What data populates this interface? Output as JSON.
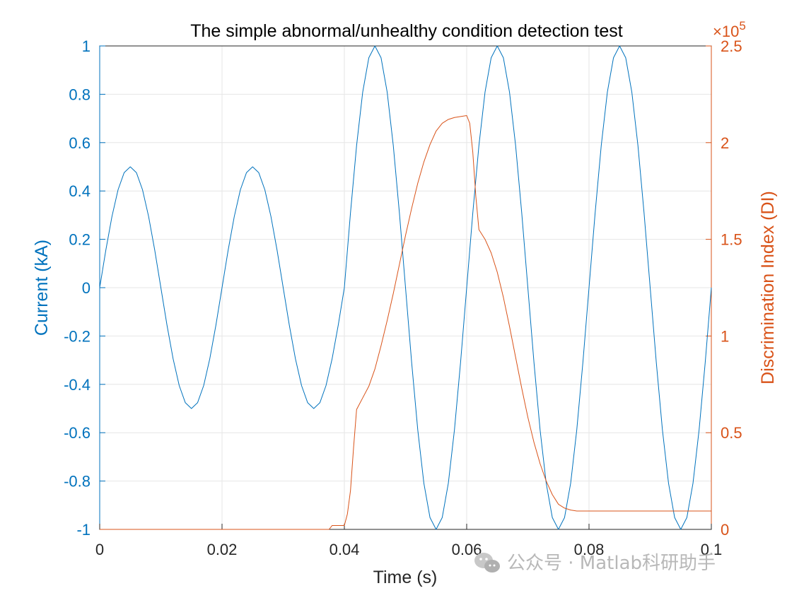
{
  "chart_data": {
    "type": "line",
    "title": "The simple abnormal/unhealthy condition detection test",
    "xlabel": "Time (s)",
    "ylabel_left": "Current (kA)",
    "ylabel_right": "Discrimination Index (DI)",
    "right_exponent_base": "×10",
    "right_exponent_power": "5",
    "xlim": [
      0,
      0.1
    ],
    "ylim_left": [
      -1,
      1
    ],
    "ylim_right": [
      0,
      2.5
    ],
    "x_ticks": [
      0,
      0.02,
      0.04,
      0.06,
      0.08,
      0.1
    ],
    "x_tick_labels": [
      "0",
      "0.02",
      "0.04",
      "0.06",
      "0.08",
      "0.1"
    ],
    "y_left_ticks": [
      -1,
      -0.8,
      -0.6,
      -0.4,
      -0.2,
      0,
      0.2,
      0.4,
      0.6,
      0.8,
      1
    ],
    "y_left_tick_labels": [
      "-1",
      "-0.8",
      "-0.6",
      "-0.4",
      "-0.2",
      "0",
      "0.2",
      "0.4",
      "0.6",
      "0.8",
      "1"
    ],
    "y_right_ticks": [
      0,
      0.5,
      1,
      1.5,
      2,
      2.5
    ],
    "y_right_tick_labels": [
      "0",
      "0.5",
      "1",
      "1.5",
      "2",
      "2.5"
    ],
    "grid": true,
    "colors": {
      "left": "#0072bd",
      "right": "#d95319",
      "grid": "#e6e6e6",
      "axis": "#262626"
    },
    "series": [
      {
        "axis": "left",
        "sample_interval": 0.001,
        "x_start": 0,
        "values": [
          0,
          0.155,
          0.294,
          0.405,
          0.476,
          0.5,
          0.476,
          0.405,
          0.294,
          0.155,
          0,
          -0.155,
          -0.294,
          -0.405,
          -0.476,
          -0.5,
          -0.476,
          -0.405,
          -0.294,
          -0.155,
          0,
          0.155,
          0.294,
          0.405,
          0.476,
          0.5,
          0.476,
          0.405,
          0.294,
          0.155,
          0,
          -0.155,
          -0.294,
          -0.405,
          -0.476,
          -0.5,
          -0.476,
          -0.405,
          -0.294,
          -0.155,
          0,
          0.309,
          0.588,
          0.809,
          0.951,
          1,
          0.951,
          0.809,
          0.588,
          0.309,
          0,
          -0.309,
          -0.588,
          -0.809,
          -0.951,
          -1,
          -0.951,
          -0.809,
          -0.588,
          -0.309,
          0,
          0.309,
          0.588,
          0.809,
          0.951,
          1,
          0.951,
          0.809,
          0.588,
          0.309,
          0,
          -0.309,
          -0.588,
          -0.809,
          -0.951,
          -1,
          -0.951,
          -0.809,
          -0.588,
          -0.309,
          0,
          0.309,
          0.588,
          0.809,
          0.951,
          1,
          0.951,
          0.809,
          0.588,
          0.309,
          0,
          -0.309,
          -0.588,
          -0.809,
          -0.951,
          -1,
          -0.951,
          -0.809,
          -0.588,
          -0.309,
          0
        ]
      },
      {
        "axis": "right",
        "x": [
          0,
          0.0375,
          0.038,
          0.04,
          0.0405,
          0.041,
          0.0415,
          0.042,
          0.0425,
          0.043,
          0.044,
          0.045,
          0.046,
          0.047,
          0.048,
          0.049,
          0.05,
          0.051,
          0.052,
          0.053,
          0.054,
          0.055,
          0.056,
          0.057,
          0.058,
          0.059,
          0.06,
          0.0605,
          0.061,
          0.0615,
          0.062,
          0.063,
          0.064,
          0.065,
          0.066,
          0.067,
          0.068,
          0.069,
          0.07,
          0.071,
          0.072,
          0.073,
          0.074,
          0.075,
          0.076,
          0.077,
          0.078,
          0.079,
          0.08,
          0.09,
          0.1
        ],
        "values": [
          0,
          0,
          0.02,
          0.02,
          0.08,
          0.2,
          0.42,
          0.62,
          0.65,
          0.68,
          0.74,
          0.83,
          0.95,
          1.08,
          1.22,
          1.37,
          1.52,
          1.66,
          1.79,
          1.9,
          1.99,
          2.06,
          2.1,
          2.12,
          2.13,
          2.135,
          2.14,
          2.1,
          1.95,
          1.72,
          1.55,
          1.5,
          1.43,
          1.33,
          1.2,
          1.05,
          0.89,
          0.73,
          0.58,
          0.45,
          0.34,
          0.25,
          0.18,
          0.13,
          0.11,
          0.1,
          0.095,
          0.095,
          0.095,
          0.095,
          0.095
        ]
      }
    ]
  },
  "watermark": {
    "icon": "wechat-icon",
    "text": "公众号 · Matlab科研助手"
  }
}
